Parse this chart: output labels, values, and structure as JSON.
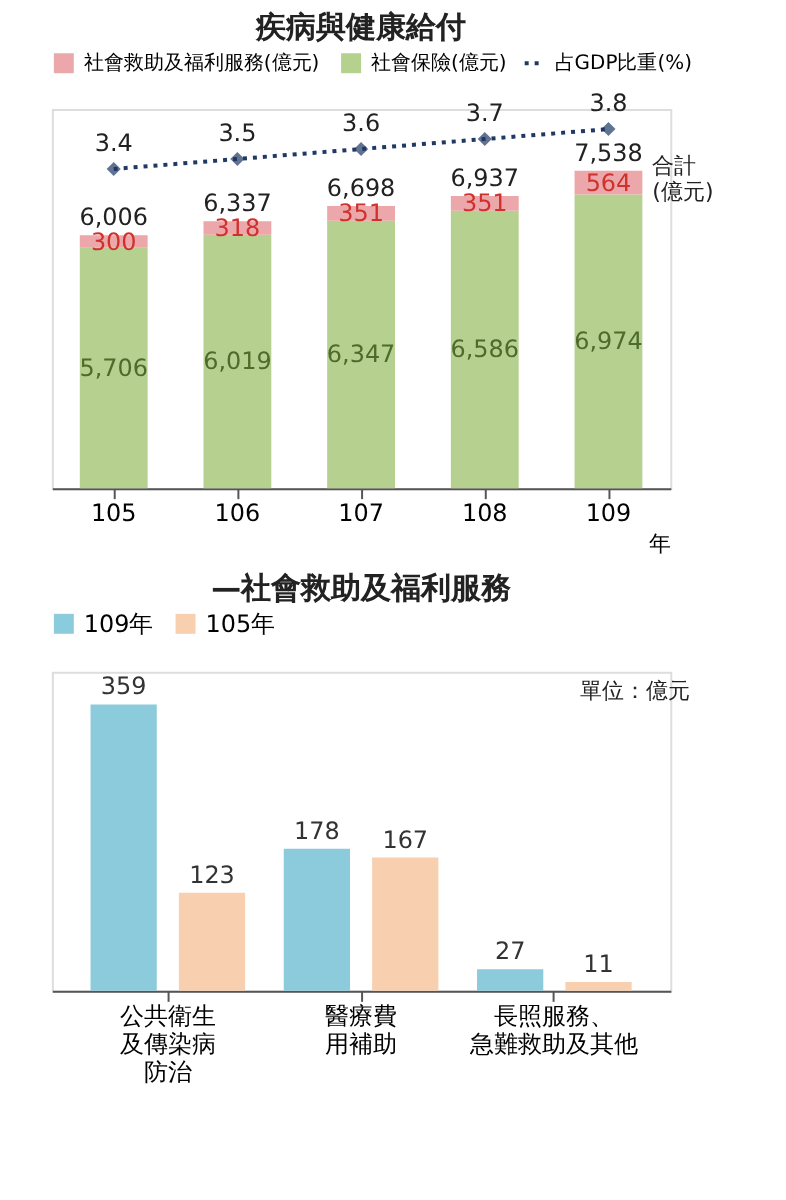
{
  "chart_data": [
    {
      "type": "bar",
      "title": "疾病與健康給付",
      "categories": [
        "105",
        "106",
        "107",
        "108",
        "109"
      ],
      "stacked": true,
      "xlabel": "年",
      "series": [
        {
          "name": "社會保險(億元)",
          "color": "#b5d08f",
          "values": [
            5706,
            6019,
            6347,
            6586,
            6974
          ],
          "value_labels": [
            "5,706",
            "6,019",
            "6,347",
            "6,586",
            "6,974"
          ]
        },
        {
          "name": "社會救助及福利服務(億元)",
          "color": "#eba7a9",
          "values": [
            300,
            318,
            351,
            351,
            564
          ]
        },
        {
          "name": "占GDP比重(%)",
          "type": "line",
          "axis": "y2",
          "color": "#1f3864",
          "values": [
            3.4,
            3.5,
            3.6,
            3.7,
            3.8
          ],
          "marker": "diamond",
          "line_style": "dotted"
        }
      ],
      "totals": [
        "6,006",
        "6,337",
        "6,698",
        "6,937",
        "7,538"
      ],
      "data_labels": true,
      "annotations": [
        "合計\n(億元)"
      ],
      "ylim": [
        0,
        9000
      ],
      "y2lim": [
        0.2,
        4.0
      ],
      "legend": "top",
      "tick_labels": "x"
    },
    {
      "type": "bar",
      "title": "—社會救助及福利服務",
      "categories": [
        "公共衛生及傳染病防治",
        "醫療費用補助",
        "長照服務、急難救助及其他"
      ],
      "series": [
        {
          "name": "109年",
          "color": "#8ccbdb",
          "values": [
            359,
            178,
            27
          ]
        },
        {
          "name": "105年",
          "color": "#f8d0b0",
          "values": [
            123,
            167,
            11
          ]
        }
      ],
      "data_labels": true,
      "annotations": [
        "單位：億元"
      ],
      "ylim": [
        0,
        400
      ],
      "legend": "top",
      "tick_labels": "x"
    }
  ]
}
